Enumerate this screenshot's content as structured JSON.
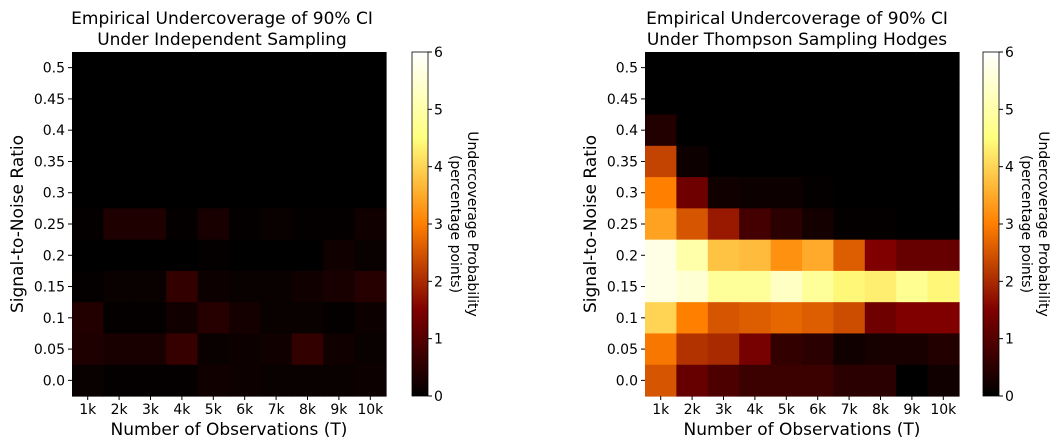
{
  "chart_data": [
    {
      "type": "heatmap",
      "title": "Empirical Undercoverage of 90% CI",
      "subtitle": "Under Independent Sampling",
      "xlabel": "Number of Observations (T)",
      "ylabel": "Signal-to-Noise Ratio",
      "x_ticks": [
        "1k",
        "2k",
        "3k",
        "4k",
        "5k",
        "6k",
        "7k",
        "8k",
        "9k",
        "10k"
      ],
      "y_ticks": [
        "0.5",
        "0.45",
        "0.4",
        "0.35",
        "0.3",
        "0.25",
        "0.2",
        "0.15",
        "0.1",
        "0.05",
        "0.0"
      ],
      "colorbar": {
        "label_line1": "Undercoverage Probability",
        "label_line2": "(percentage points)",
        "ticks": [
          "0",
          "1",
          "2",
          "3",
          "4",
          "5",
          "6"
        ],
        "range": [
          0,
          6
        ],
        "colormap": "afmhot"
      },
      "values": [
        [
          0,
          0,
          0,
          0,
          0,
          0,
          0,
          0,
          0,
          0
        ],
        [
          0,
          0,
          0,
          0,
          0,
          0,
          0,
          0,
          0,
          0
        ],
        [
          0,
          0,
          0,
          0,
          0,
          0,
          0,
          0,
          0,
          0
        ],
        [
          0,
          0,
          0,
          0,
          0,
          0,
          0,
          0,
          0,
          0
        ],
        [
          0,
          0,
          0,
          0,
          0,
          0,
          0,
          0,
          0,
          0
        ],
        [
          0.05,
          0.35,
          0.35,
          0.05,
          0.3,
          0.05,
          0.1,
          0.05,
          0.05,
          0.2
        ],
        [
          0,
          0,
          0,
          0,
          0.05,
          0,
          0,
          0,
          0.2,
          0.1
        ],
        [
          0.05,
          0.1,
          0.1,
          0.6,
          0.15,
          0.1,
          0.1,
          0.2,
          0.3,
          0.45
        ],
        [
          0.4,
          0.05,
          0.05,
          0.2,
          0.45,
          0.25,
          0.1,
          0.1,
          0.05,
          0.15
        ],
        [
          0.35,
          0.3,
          0.3,
          0.65,
          0.1,
          0.15,
          0.2,
          0.6,
          0.2,
          0.1
        ],
        [
          0.1,
          0.05,
          0.05,
          0.05,
          0.2,
          0.15,
          0.1,
          0.1,
          0.1,
          0.15
        ]
      ]
    },
    {
      "type": "heatmap",
      "title": "Empirical Undercoverage of 90% CI",
      "subtitle": "Under Thompson Sampling Hodges",
      "xlabel": "Number of Observations (T)",
      "ylabel": "Signal-to-Noise Ratio",
      "x_ticks": [
        "1k",
        "2k",
        "3k",
        "4k",
        "5k",
        "6k",
        "7k",
        "8k",
        "9k",
        "10k"
      ],
      "y_ticks": [
        "0.5",
        "0.45",
        "0.4",
        "0.35",
        "0.3",
        "0.25",
        "0.2",
        "0.15",
        "0.1",
        "0.05",
        "0.0"
      ],
      "colorbar": {
        "label_line1": "Undercoverage Probability",
        "label_line2": "(percentage points)",
        "ticks": [
          "0",
          "1",
          "2",
          "3",
          "4",
          "5",
          "6"
        ],
        "range": [
          0,
          6
        ],
        "colormap": "afmhot"
      },
      "values": [
        [
          0,
          0,
          0,
          0,
          0,
          0,
          0,
          0,
          0,
          0
        ],
        [
          0,
          0,
          0,
          0,
          0,
          0,
          0,
          0,
          0,
          0
        ],
        [
          0.4,
          0,
          0,
          0,
          0,
          0,
          0,
          0,
          0,
          0
        ],
        [
          2.3,
          0.15,
          0,
          0,
          0,
          0,
          0,
          0,
          0,
          0
        ],
        [
          3.0,
          1.3,
          0.2,
          0.15,
          0.15,
          0.05,
          0,
          0,
          0,
          0
        ],
        [
          3.4,
          2.5,
          1.8,
          0.8,
          0.5,
          0.25,
          0.05,
          0.05,
          0,
          0
        ],
        [
          5.7,
          5.0,
          3.8,
          3.7,
          3.2,
          3.5,
          2.6,
          1.5,
          1.2,
          1.2
        ],
        [
          5.7,
          5.5,
          4.8,
          4.8,
          5.3,
          4.8,
          4.4,
          4.3,
          4.7,
          4.4
        ],
        [
          4.0,
          3.0,
          2.5,
          2.6,
          2.7,
          2.6,
          2.4,
          1.3,
          1.5,
          1.5
        ],
        [
          2.9,
          2.1,
          2.0,
          1.4,
          0.6,
          0.5,
          0.2,
          0.3,
          0.3,
          0.4
        ],
        [
          2.5,
          1.2,
          0.9,
          0.7,
          0.7,
          0.7,
          0.5,
          0.5,
          0,
          0.2
        ]
      ]
    }
  ]
}
